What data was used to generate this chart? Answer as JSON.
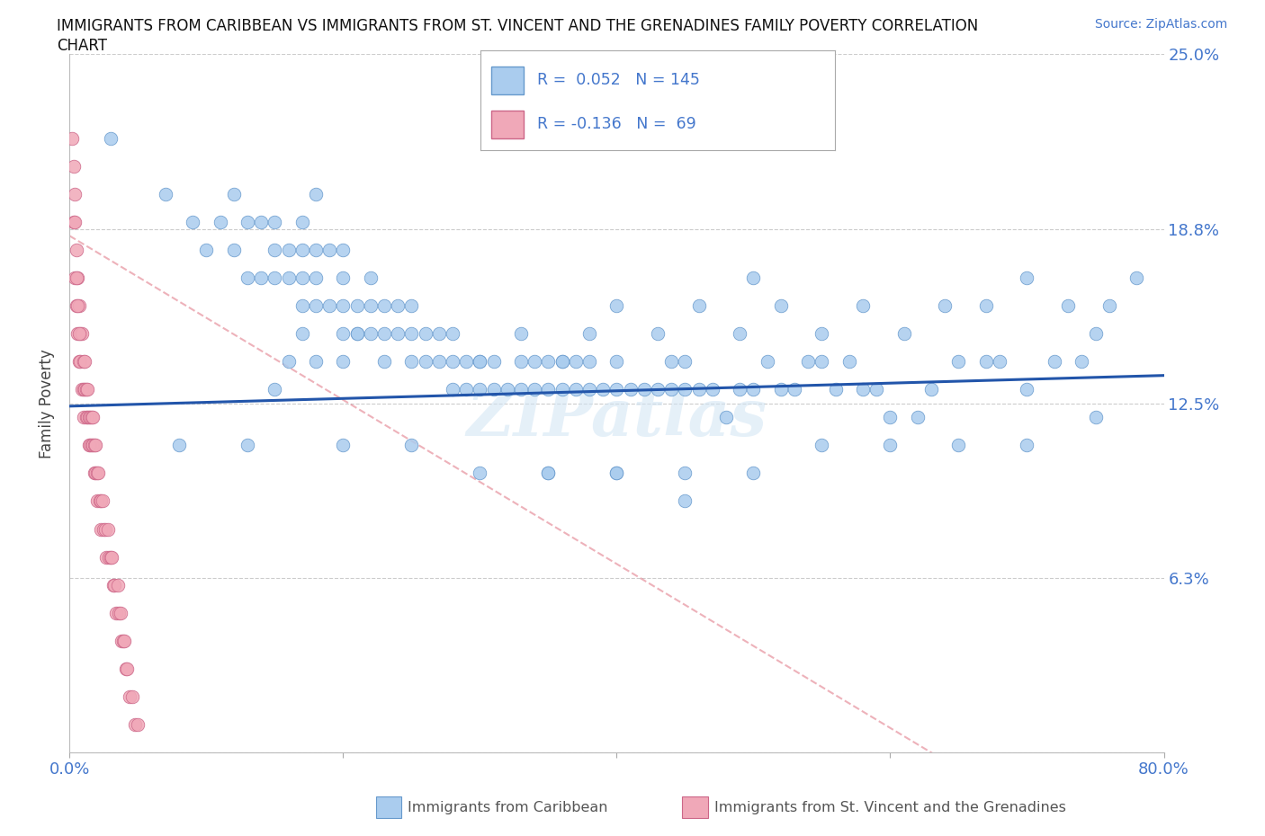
{
  "title_line1": "IMMIGRANTS FROM CARIBBEAN VS IMMIGRANTS FROM ST. VINCENT AND THE GRENADINES FAMILY POVERTY CORRELATION",
  "title_line2": "CHART",
  "source": "Source: ZipAtlas.com",
  "ylabel": "Family Poverty",
  "xlim": [
    0.0,
    0.8
  ],
  "ylim": [
    0.0,
    0.25
  ],
  "yticks": [
    0.0,
    0.0625,
    0.125,
    0.1875,
    0.25
  ],
  "ytick_labels": [
    "",
    "6.3%",
    "12.5%",
    "18.8%",
    "25.0%"
  ],
  "xticks": [
    0.0,
    0.2,
    0.4,
    0.6,
    0.8
  ],
  "xtick_labels": [
    "0.0%",
    "",
    "",
    "",
    "80.0%"
  ],
  "grid_color": "#cccccc",
  "background_color": "#ffffff",
  "blue_color": "#aaccee",
  "pink_color": "#f0a8b8",
  "blue_edge": "#6699cc",
  "pink_edge": "#cc6688",
  "trend_blue": "#2255aa",
  "trend_pink": "#dd6677",
  "R_blue": 0.052,
  "N_blue": 145,
  "R_pink": -0.136,
  "N_pink": 69,
  "legend_label_blue": "Immigrants from Caribbean",
  "legend_label_pink": "Immigrants from St. Vincent and the Grenadines",
  "watermark": "ZIPatlas",
  "blue_scatter_x": [
    0.03,
    0.07,
    0.09,
    0.1,
    0.11,
    0.12,
    0.12,
    0.13,
    0.13,
    0.14,
    0.14,
    0.15,
    0.15,
    0.15,
    0.16,
    0.16,
    0.17,
    0.17,
    0.17,
    0.17,
    0.18,
    0.18,
    0.18,
    0.18,
    0.19,
    0.19,
    0.2,
    0.2,
    0.2,
    0.2,
    0.21,
    0.21,
    0.22,
    0.22,
    0.22,
    0.23,
    0.23,
    0.24,
    0.24,
    0.25,
    0.25,
    0.26,
    0.26,
    0.27,
    0.27,
    0.28,
    0.28,
    0.29,
    0.29,
    0.3,
    0.3,
    0.31,
    0.31,
    0.32,
    0.33,
    0.33,
    0.34,
    0.34,
    0.35,
    0.35,
    0.36,
    0.36,
    0.37,
    0.37,
    0.38,
    0.38,
    0.39,
    0.4,
    0.4,
    0.41,
    0.42,
    0.43,
    0.44,
    0.44,
    0.45,
    0.45,
    0.46,
    0.47,
    0.48,
    0.49,
    0.5,
    0.51,
    0.52,
    0.53,
    0.54,
    0.55,
    0.56,
    0.57,
    0.58,
    0.59,
    0.6,
    0.62,
    0.63,
    0.65,
    0.67,
    0.68,
    0.7,
    0.72,
    0.74,
    0.75,
    0.15,
    0.16,
    0.17,
    0.18,
    0.2,
    0.21,
    0.23,
    0.25,
    0.28,
    0.3,
    0.33,
    0.36,
    0.38,
    0.4,
    0.43,
    0.46,
    0.49,
    0.52,
    0.55,
    0.58,
    0.61,
    0.64,
    0.67,
    0.7,
    0.73,
    0.76,
    0.78,
    0.35,
    0.4,
    0.45,
    0.08,
    0.13,
    0.2,
    0.25,
    0.3,
    0.35,
    0.4,
    0.45,
    0.5,
    0.55,
    0.6,
    0.65,
    0.7,
    0.75,
    0.5
  ],
  "blue_scatter_y": [
    0.22,
    0.2,
    0.19,
    0.18,
    0.19,
    0.18,
    0.2,
    0.17,
    0.19,
    0.17,
    0.19,
    0.17,
    0.18,
    0.19,
    0.17,
    0.18,
    0.16,
    0.17,
    0.18,
    0.19,
    0.16,
    0.17,
    0.18,
    0.2,
    0.16,
    0.18,
    0.15,
    0.16,
    0.17,
    0.18,
    0.15,
    0.16,
    0.15,
    0.16,
    0.17,
    0.15,
    0.16,
    0.15,
    0.16,
    0.15,
    0.16,
    0.14,
    0.15,
    0.14,
    0.15,
    0.14,
    0.15,
    0.13,
    0.14,
    0.13,
    0.14,
    0.13,
    0.14,
    0.13,
    0.13,
    0.14,
    0.13,
    0.14,
    0.13,
    0.14,
    0.13,
    0.14,
    0.13,
    0.14,
    0.13,
    0.14,
    0.13,
    0.13,
    0.14,
    0.13,
    0.13,
    0.13,
    0.13,
    0.14,
    0.13,
    0.14,
    0.13,
    0.13,
    0.12,
    0.13,
    0.13,
    0.14,
    0.13,
    0.13,
    0.14,
    0.14,
    0.13,
    0.14,
    0.13,
    0.13,
    0.12,
    0.12,
    0.13,
    0.14,
    0.14,
    0.14,
    0.13,
    0.14,
    0.14,
    0.15,
    0.13,
    0.14,
    0.15,
    0.14,
    0.14,
    0.15,
    0.14,
    0.14,
    0.13,
    0.14,
    0.15,
    0.14,
    0.15,
    0.16,
    0.15,
    0.16,
    0.15,
    0.16,
    0.15,
    0.16,
    0.15,
    0.16,
    0.16,
    0.17,
    0.16,
    0.16,
    0.17,
    0.1,
    0.1,
    0.09,
    0.11,
    0.11,
    0.11,
    0.11,
    0.1,
    0.1,
    0.1,
    0.1,
    0.1,
    0.11,
    0.11,
    0.11,
    0.11,
    0.12,
    0.17
  ],
  "pink_scatter_x": [
    0.002,
    0.003,
    0.004,
    0.004,
    0.005,
    0.005,
    0.006,
    0.006,
    0.007,
    0.007,
    0.008,
    0.008,
    0.009,
    0.009,
    0.01,
    0.01,
    0.01,
    0.011,
    0.011,
    0.012,
    0.012,
    0.013,
    0.013,
    0.014,
    0.014,
    0.015,
    0.015,
    0.016,
    0.016,
    0.017,
    0.017,
    0.018,
    0.018,
    0.019,
    0.019,
    0.02,
    0.02,
    0.021,
    0.022,
    0.023,
    0.023,
    0.024,
    0.025,
    0.026,
    0.027,
    0.028,
    0.029,
    0.03,
    0.031,
    0.032,
    0.033,
    0.034,
    0.035,
    0.036,
    0.037,
    0.038,
    0.039,
    0.04,
    0.041,
    0.042,
    0.044,
    0.046,
    0.048,
    0.05,
    0.003,
    0.004,
    0.005,
    0.006,
    0.007
  ],
  "pink_scatter_y": [
    0.22,
    0.19,
    0.2,
    0.17,
    0.18,
    0.16,
    0.17,
    0.15,
    0.16,
    0.14,
    0.15,
    0.14,
    0.15,
    0.13,
    0.14,
    0.13,
    0.12,
    0.14,
    0.13,
    0.13,
    0.12,
    0.13,
    0.12,
    0.12,
    0.11,
    0.12,
    0.11,
    0.12,
    0.11,
    0.12,
    0.11,
    0.11,
    0.1,
    0.11,
    0.1,
    0.1,
    0.09,
    0.1,
    0.09,
    0.09,
    0.08,
    0.09,
    0.08,
    0.08,
    0.07,
    0.08,
    0.07,
    0.07,
    0.07,
    0.06,
    0.06,
    0.05,
    0.06,
    0.05,
    0.05,
    0.04,
    0.04,
    0.04,
    0.03,
    0.03,
    0.02,
    0.02,
    0.01,
    0.01,
    0.21,
    0.19,
    0.17,
    0.16,
    0.15
  ]
}
